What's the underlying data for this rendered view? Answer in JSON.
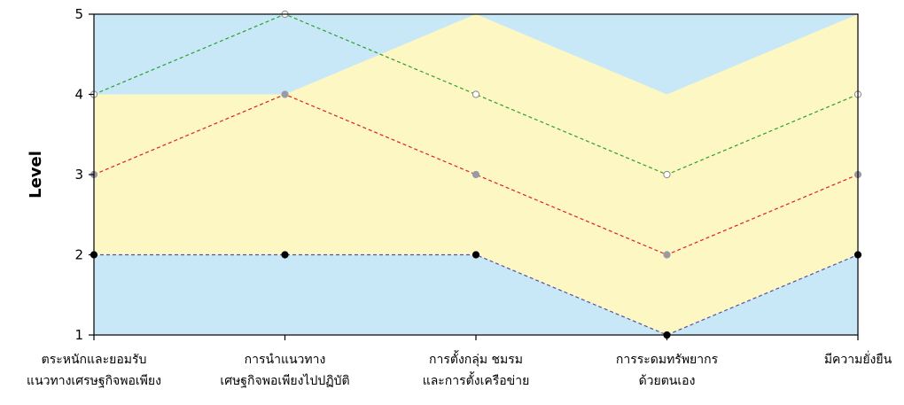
{
  "chart_data": {
    "type": "line",
    "title": "",
    "xlabel": "",
    "ylabel": "Level",
    "ylim": [
      1,
      5
    ],
    "yticks": [
      1,
      2,
      3,
      4,
      5
    ],
    "categories": [
      [
        "ตระหนักและยอมรับ",
        "แนวทางเศรษฐกิจพอเพียง"
      ],
      [
        "การนำแนวทาง",
        "เศษฐกิจพอเพียงไปปฏิบัติ"
      ],
      [
        "การตั้งกลุ่ม ชมรม",
        "และการตั้งเครือข่าย"
      ],
      [
        "การระดมทรัพยากร",
        "ด้วยตนเอง"
      ],
      [
        "มีความยั่งยืน"
      ]
    ],
    "series": [
      {
        "values": [
          4,
          5,
          4,
          3,
          4
        ],
        "color": "#2ca02c",
        "marker": "#ffffff",
        "marker_edge": "#888888"
      },
      {
        "values": [
          3,
          4,
          3,
          2,
          3
        ],
        "color": "#e0201b",
        "marker": "#9a9aa6",
        "marker_edge": "#9a9aa6"
      },
      {
        "values": [
          2,
          2,
          2,
          1,
          2
        ],
        "color": "#5a4fa0",
        "marker": "#000000",
        "marker_edge": "#000000"
      }
    ],
    "band": {
      "lower": [
        2,
        2,
        2,
        1,
        2
      ],
      "upper": [
        4,
        4,
        5,
        4,
        5
      ]
    },
    "colors": {
      "background": "#c8e8f8",
      "band": "#fdf7c3"
    },
    "grid": false,
    "legend": "none"
  }
}
